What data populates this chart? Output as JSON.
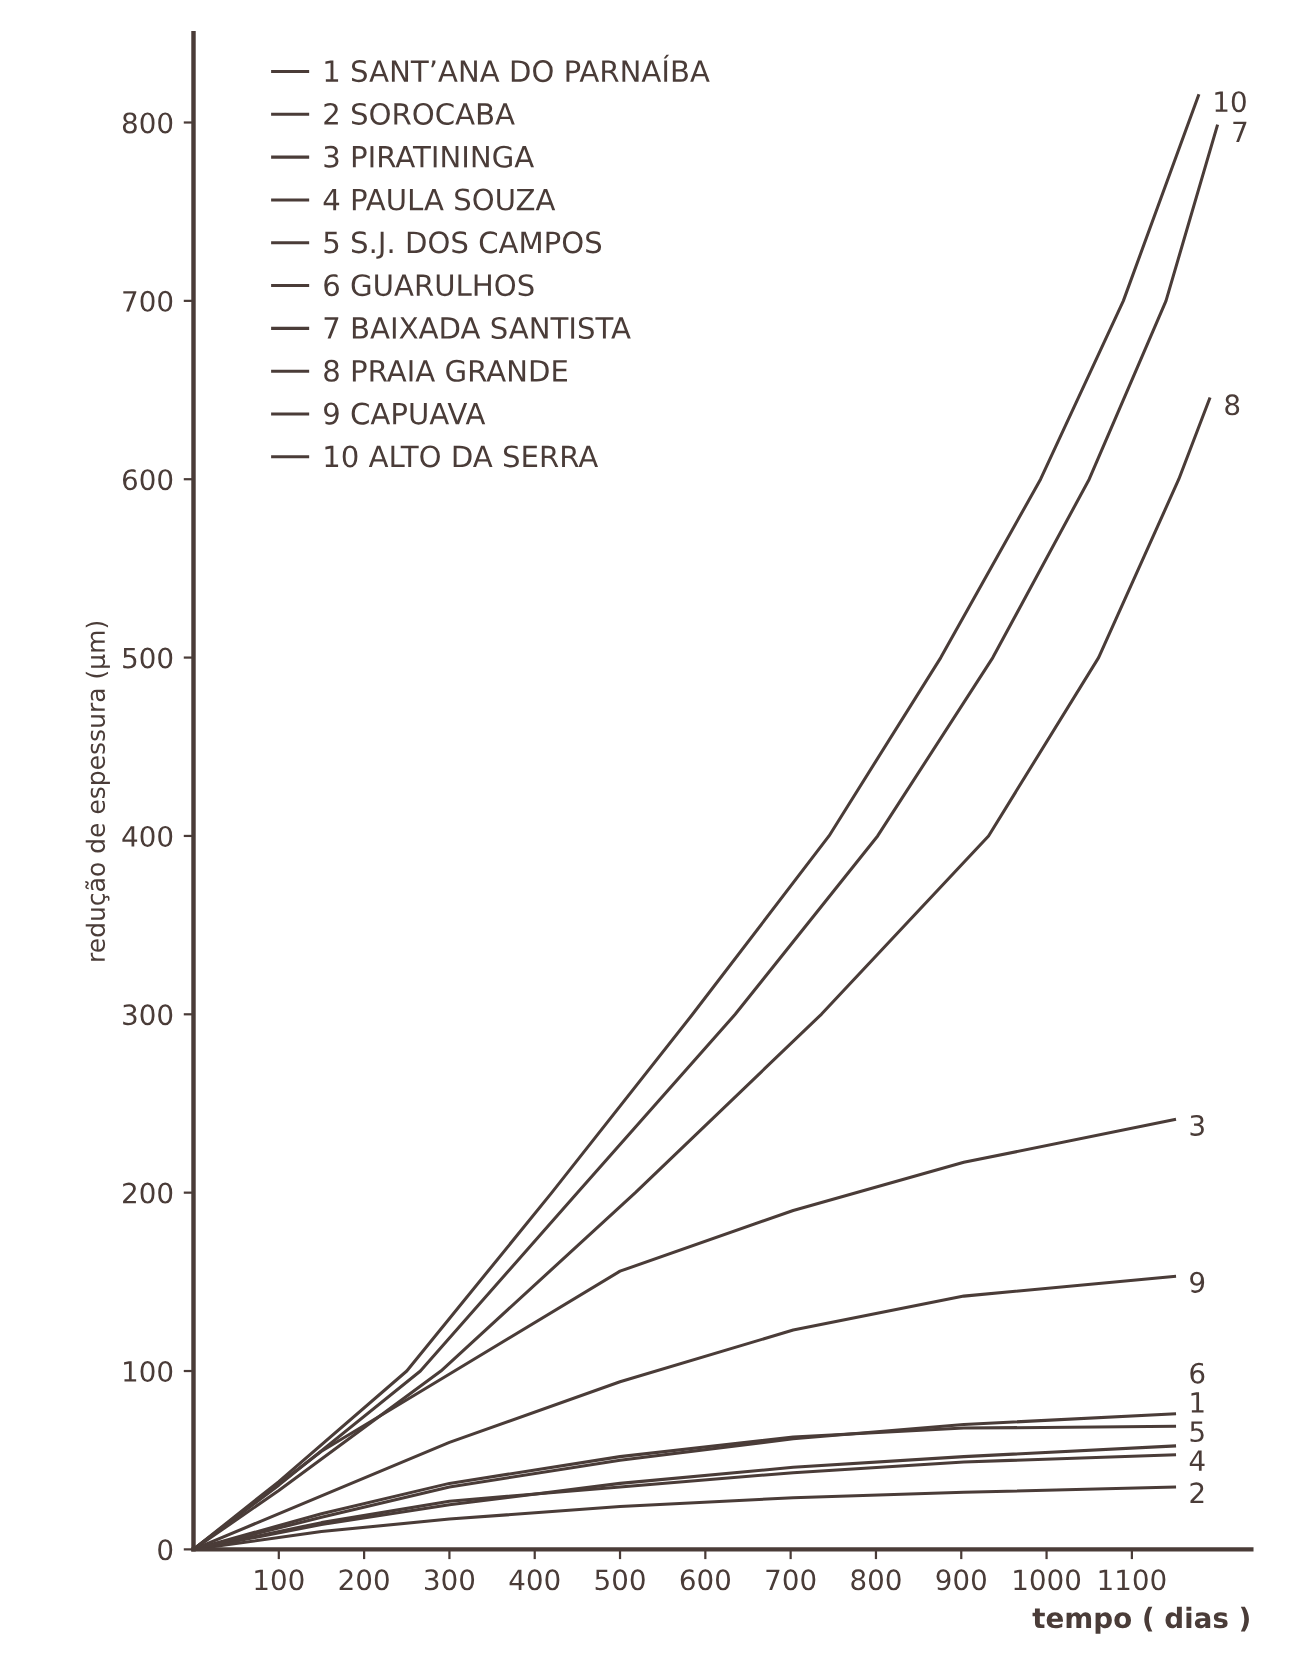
{
  "chart_data": {
    "type": "line",
    "xlabel": "tempo ( dias )",
    "ylabel": "redução de espessura (μm)",
    "xlim": [
      0,
      1240
    ],
    "ylim": [
      0,
      850
    ],
    "xticks": [
      100,
      200,
      300,
      400,
      500,
      600,
      700,
      800,
      900,
      1000,
      1100
    ],
    "yticks": [
      0,
      100,
      200,
      300,
      400,
      500,
      600,
      700,
      800
    ],
    "grid": false,
    "legend": "top left",
    "marker": "none",
    "line_style": "solid",
    "series": [
      {
        "name": "1 SANT’ANA DO PARNAÍBA",
        "color": "#4a3c38",
        "x": [
          0,
          150,
          300,
          500,
          703,
          903,
          1150
        ],
        "values": [
          0,
          20,
          37,
          52,
          63,
          68,
          69
        ]
      },
      {
        "name": "2 SOROCABA",
        "color": "#4a3c38",
        "x": [
          0,
          150,
          300,
          500,
          703,
          903,
          1150
        ],
        "values": [
          0,
          10,
          17,
          24,
          29,
          32,
          35
        ]
      },
      {
        "name": "3 PIRATININGA",
        "color": "#4a3c38",
        "x": [
          0,
          150,
          306,
          500,
          703,
          903,
          1150
        ],
        "values": [
          0,
          55,
          100,
          156,
          190,
          217,
          241
        ]
      },
      {
        "name": "4 PAULA SOUZA",
        "color": "#4a3c38",
        "x": [
          0,
          150,
          300,
          500,
          703,
          903,
          1150
        ],
        "values": [
          0,
          15,
          27,
          35,
          43,
          49,
          53
        ]
      },
      {
        "name": "5 S.J. DOS CAMPOS",
        "color": "#4a3c38",
        "x": [
          0,
          150,
          300,
          500,
          703,
          903,
          1150
        ],
        "values": [
          0,
          14,
          25,
          37,
          46,
          52,
          58
        ]
      },
      {
        "name": "6 GUARULHOS",
        "color": "#4a3c38",
        "x": [
          0,
          150,
          300,
          500,
          703,
          903,
          1150
        ],
        "values": [
          0,
          18,
          35,
          50,
          62,
          70,
          76
        ]
      },
      {
        "name": "7 BAIXADA SANTISTA",
        "color": "#4a3c38",
        "x": [
          0,
          100,
          266,
          450,
          635,
          802,
          937,
          1050,
          1140,
          1200
        ],
        "values": [
          0,
          36,
          100,
          200,
          300,
          400,
          500,
          600,
          700,
          798
        ]
      },
      {
        "name": "8 PRAIA GRANDE",
        "color": "#4a3c38",
        "x": [
          0,
          100,
          290,
          518,
          736,
          932,
          1061,
          1155,
          1191
        ],
        "values": [
          0,
          33,
          100,
          200,
          300,
          400,
          500,
          600,
          645
        ]
      },
      {
        "name": "9 CAPUAVA",
        "color": "#4a3c38",
        "x": [
          0,
          150,
          300,
          500,
          703,
          903,
          1150
        ],
        "values": [
          0,
          30,
          60,
          94,
          123,
          142,
          153
        ]
      },
      {
        "name": "10 ALTO DA SERRA",
        "color": "#4a3c38",
        "x": [
          0,
          100,
          250,
          420,
          585,
          745,
          876,
          993,
          1090,
          1178
        ],
        "values": [
          0,
          38,
          100,
          200,
          300,
          400,
          500,
          600,
          700,
          815
        ]
      }
    ],
    "annotations": [
      {
        "text": "1",
        "x": 1150,
        "y": 69
      },
      {
        "text": "2",
        "x": 1150,
        "y": 35
      },
      {
        "text": "3",
        "x": 1150,
        "y": 241
      },
      {
        "text": "4",
        "x": 1150,
        "y": 53
      },
      {
        "text": "5",
        "x": 1150,
        "y": 58
      },
      {
        "text": "6",
        "x": 1150,
        "y": 76
      },
      {
        "text": "7",
        "x": 1200,
        "y": 798
      },
      {
        "text": "8",
        "x": 1191,
        "y": 645
      },
      {
        "text": "9",
        "x": 1150,
        "y": 153
      },
      {
        "text": "10",
        "x": 1178,
        "y": 815
      }
    ]
  }
}
